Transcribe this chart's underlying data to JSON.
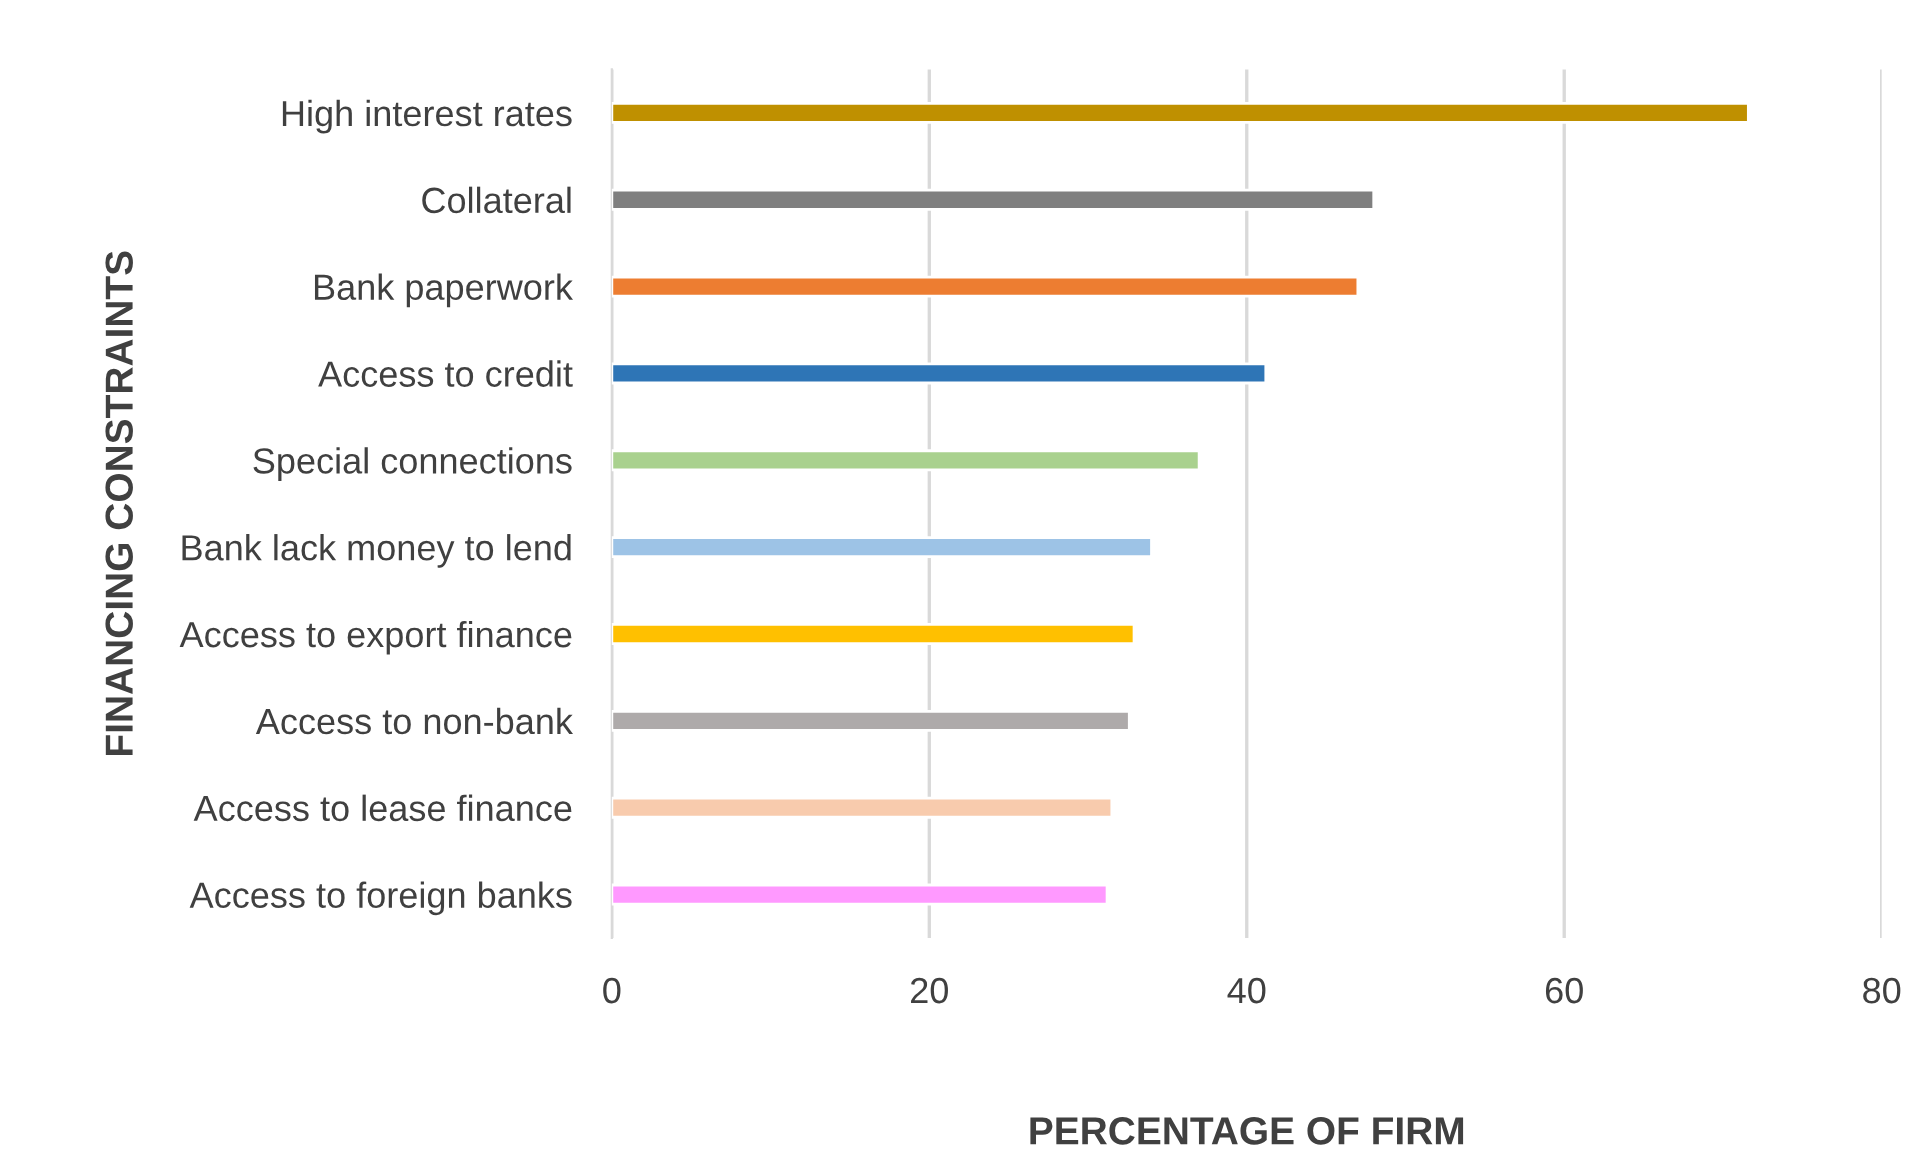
{
  "chart_data": {
    "type": "bar",
    "orientation": "horizontal",
    "xlabel": "PERCENTAGE OF FIRM",
    "ylabel": "FINANCING CONSTRAINTS",
    "categories": [
      "High interest rates",
      "Collateral",
      "Bank paperwork",
      "Access to credit",
      "Special connections",
      "Bank lack money to lend",
      "Access to export finance",
      "Access to non-bank",
      "Access to lease finance",
      "Access to foreign banks"
    ],
    "values": [
      71.6,
      48.0,
      47.0,
      41.2,
      37.0,
      34.0,
      32.9,
      32.6,
      31.5,
      31.2
    ],
    "colors": [
      "#bf9000",
      "#7f7f7f",
      "#ed7d31",
      "#2e75b6",
      "#a9d18e",
      "#9dc3e6",
      "#ffc000",
      "#aeaaaa",
      "#f8cbad",
      "#ff99ff"
    ],
    "xlim": [
      0,
      80
    ],
    "xticks": [
      0,
      20,
      40,
      60,
      80
    ],
    "grid": "x"
  }
}
